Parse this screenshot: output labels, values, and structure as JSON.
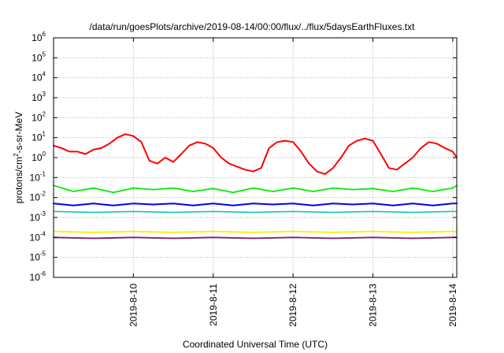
{
  "chart_data": {
    "type": "line",
    "title": "/data/run/goesPlots/archive/2019-08-14/00:00/flux/../flux/5daysEarthFluxes.txt",
    "xlabel": "Coordinated Universal Time (UTC)",
    "ylabel": "protons/cm2-s-sr-MeV",
    "ylabel_parts": {
      "pre": "protons/cm",
      "sup": "2",
      "post": "-s-sr-MeV"
    },
    "yscale": "log",
    "ylim": [
      1e-06,
      1000000.0
    ],
    "xlim": [
      0,
      5.05
    ],
    "grid": true,
    "legend": "none",
    "y_ticks": [
      {
        "base": "10",
        "exp": "-6",
        "value": -6
      },
      {
        "base": "10",
        "exp": "-5",
        "value": -5
      },
      {
        "base": "10",
        "exp": "-4",
        "value": -4
      },
      {
        "base": "10",
        "exp": "-3",
        "value": -3
      },
      {
        "base": "10",
        "exp": "-2",
        "value": -2
      },
      {
        "base": "10",
        "exp": "-1",
        "value": -1
      },
      {
        "base": "10",
        "exp": "0",
        "value": 0
      },
      {
        "base": "10",
        "exp": "1",
        "value": 1
      },
      {
        "base": "10",
        "exp": "2",
        "value": 2
      },
      {
        "base": "10",
        "exp": "3",
        "value": 3
      },
      {
        "base": "10",
        "exp": "4",
        "value": 4
      },
      {
        "base": "10",
        "exp": "5",
        "value": 5
      },
      {
        "base": "10",
        "exp": "6",
        "value": 6
      }
    ],
    "x_ticks": [
      {
        "label": "2019-8-10",
        "value": 1
      },
      {
        "label": "2019-8-11",
        "value": 2
      },
      {
        "label": "2019-8-12",
        "value": 3
      },
      {
        "label": "2019-8-13",
        "value": 4
      },
      {
        "label": "2019-8-14",
        "value": 5
      }
    ],
    "series": [
      {
        "color": "#ff0000",
        "width": 2,
        "x": [
          0,
          0.1,
          0.2,
          0.3,
          0.4,
          0.5,
          0.6,
          0.7,
          0.8,
          0.9,
          1.0,
          1.1,
          1.2,
          1.3,
          1.4,
          1.5,
          1.6,
          1.7,
          1.8,
          1.9,
          2.0,
          2.1,
          2.2,
          2.3,
          2.4,
          2.5,
          2.6,
          2.7,
          2.8,
          2.9,
          3.0,
          3.1,
          3.2,
          3.3,
          3.4,
          3.5,
          3.6,
          3.7,
          3.8,
          3.9,
          4.0,
          4.1,
          4.2,
          4.3,
          4.4,
          4.5,
          4.6,
          4.7,
          4.8,
          4.9,
          5.0,
          5.05
        ],
        "y": [
          4,
          3,
          2,
          2,
          1.5,
          2.5,
          3,
          5,
          10,
          15,
          12,
          6,
          0.7,
          0.5,
          1,
          0.6,
          1.5,
          4,
          6,
          5,
          3,
          1,
          0.5,
          0.35,
          0.25,
          0.2,
          0.3,
          3,
          6,
          7,
          6,
          2,
          0.5,
          0.2,
          0.15,
          0.3,
          1,
          4,
          7,
          9,
          7,
          1.5,
          0.3,
          0.25,
          0.5,
          1,
          3,
          6,
          5,
          3,
          2,
          1
        ]
      },
      {
        "color": "#00ee00",
        "width": 1.8,
        "x": [
          0,
          0.25,
          0.5,
          0.75,
          1.0,
          1.25,
          1.5,
          1.75,
          2.0,
          2.25,
          2.5,
          2.75,
          3.0,
          3.25,
          3.5,
          3.75,
          4.0,
          4.25,
          4.5,
          4.75,
          5.0,
          5.05
        ],
        "y": [
          0.04,
          0.02,
          0.03,
          0.018,
          0.03,
          0.025,
          0.03,
          0.02,
          0.028,
          0.018,
          0.03,
          0.02,
          0.03,
          0.02,
          0.03,
          0.025,
          0.028,
          0.02,
          0.03,
          0.02,
          0.03,
          0.04
        ]
      },
      {
        "color": "#0000ee",
        "width": 2,
        "x": [
          0,
          0.25,
          0.5,
          0.75,
          1.0,
          1.25,
          1.5,
          1.75,
          2.0,
          2.25,
          2.5,
          2.75,
          3.0,
          3.25,
          3.5,
          3.75,
          4.0,
          4.25,
          4.5,
          4.75,
          5.0,
          5.05
        ],
        "y": [
          0.005,
          0.004,
          0.005,
          0.004,
          0.005,
          0.0045,
          0.005,
          0.004,
          0.005,
          0.004,
          0.005,
          0.0045,
          0.005,
          0.004,
          0.005,
          0.0045,
          0.005,
          0.004,
          0.005,
          0.004,
          0.005,
          0.005
        ]
      },
      {
        "color": "#00c8b4",
        "width": 1.5,
        "x": [
          0,
          0.5,
          1.0,
          1.5,
          2.0,
          2.5,
          3.0,
          3.5,
          4.0,
          4.5,
          5.0,
          5.05
        ],
        "y": [
          0.002,
          0.0018,
          0.002,
          0.0018,
          0.002,
          0.0018,
          0.002,
          0.0018,
          0.002,
          0.0018,
          0.002,
          0.002
        ]
      },
      {
        "color": "#ffee00",
        "width": 1.8,
        "x": [
          0,
          0.5,
          1.0,
          1.5,
          2.0,
          2.5,
          3.0,
          3.5,
          4.0,
          4.5,
          5.0,
          5.05
        ],
        "y": [
          0.0002,
          0.00018,
          0.0002,
          0.00018,
          0.0002,
          0.00018,
          0.0002,
          0.00018,
          0.0002,
          0.00018,
          0.0002,
          0.0002
        ]
      },
      {
        "color": "#7a1f6b",
        "width": 1.8,
        "x": [
          0,
          0.5,
          1.0,
          1.5,
          2.0,
          2.5,
          3.0,
          3.5,
          4.0,
          4.5,
          5.0,
          5.05
        ],
        "y": [
          0.0001,
          9e-05,
          0.0001,
          9e-05,
          0.0001,
          9e-05,
          0.0001,
          9e-05,
          0.0001,
          9e-05,
          0.0001,
          0.0001
        ]
      }
    ]
  }
}
